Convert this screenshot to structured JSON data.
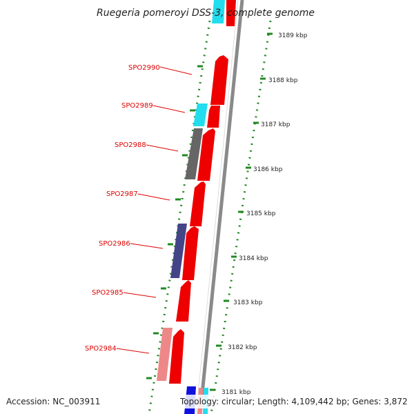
{
  "title": "Ruegeria pomeroyi DSS-3, complete genome",
  "footer": {
    "accession": "Accession: NC_003911",
    "topology": "Topology: circular; Length: 4,109,442 bp; Genes: 3,872"
  },
  "kbp_labels": [
    "3189 kbp",
    "3188 kbp",
    "3187 kbp",
    "3186 kbp",
    "3185 kbp",
    "3184 kbp",
    "3183 kbp",
    "3182 kbp",
    "3181 kbp"
  ],
  "gene_labels": [
    "SPO2990",
    "SPO2989",
    "SPO2988",
    "SPO2987",
    "SPO2986",
    "SPO2985",
    "SPO2984"
  ],
  "colors": {
    "backbone": "#8a8a8a",
    "forward_gene": "#ee0000",
    "label": "#dd0000",
    "dots": "#228822",
    "cyan": "#22ddee",
    "gray": "#666666",
    "indigo": "#444488",
    "pink": "#ee8888",
    "blue": "#1111dd"
  }
}
